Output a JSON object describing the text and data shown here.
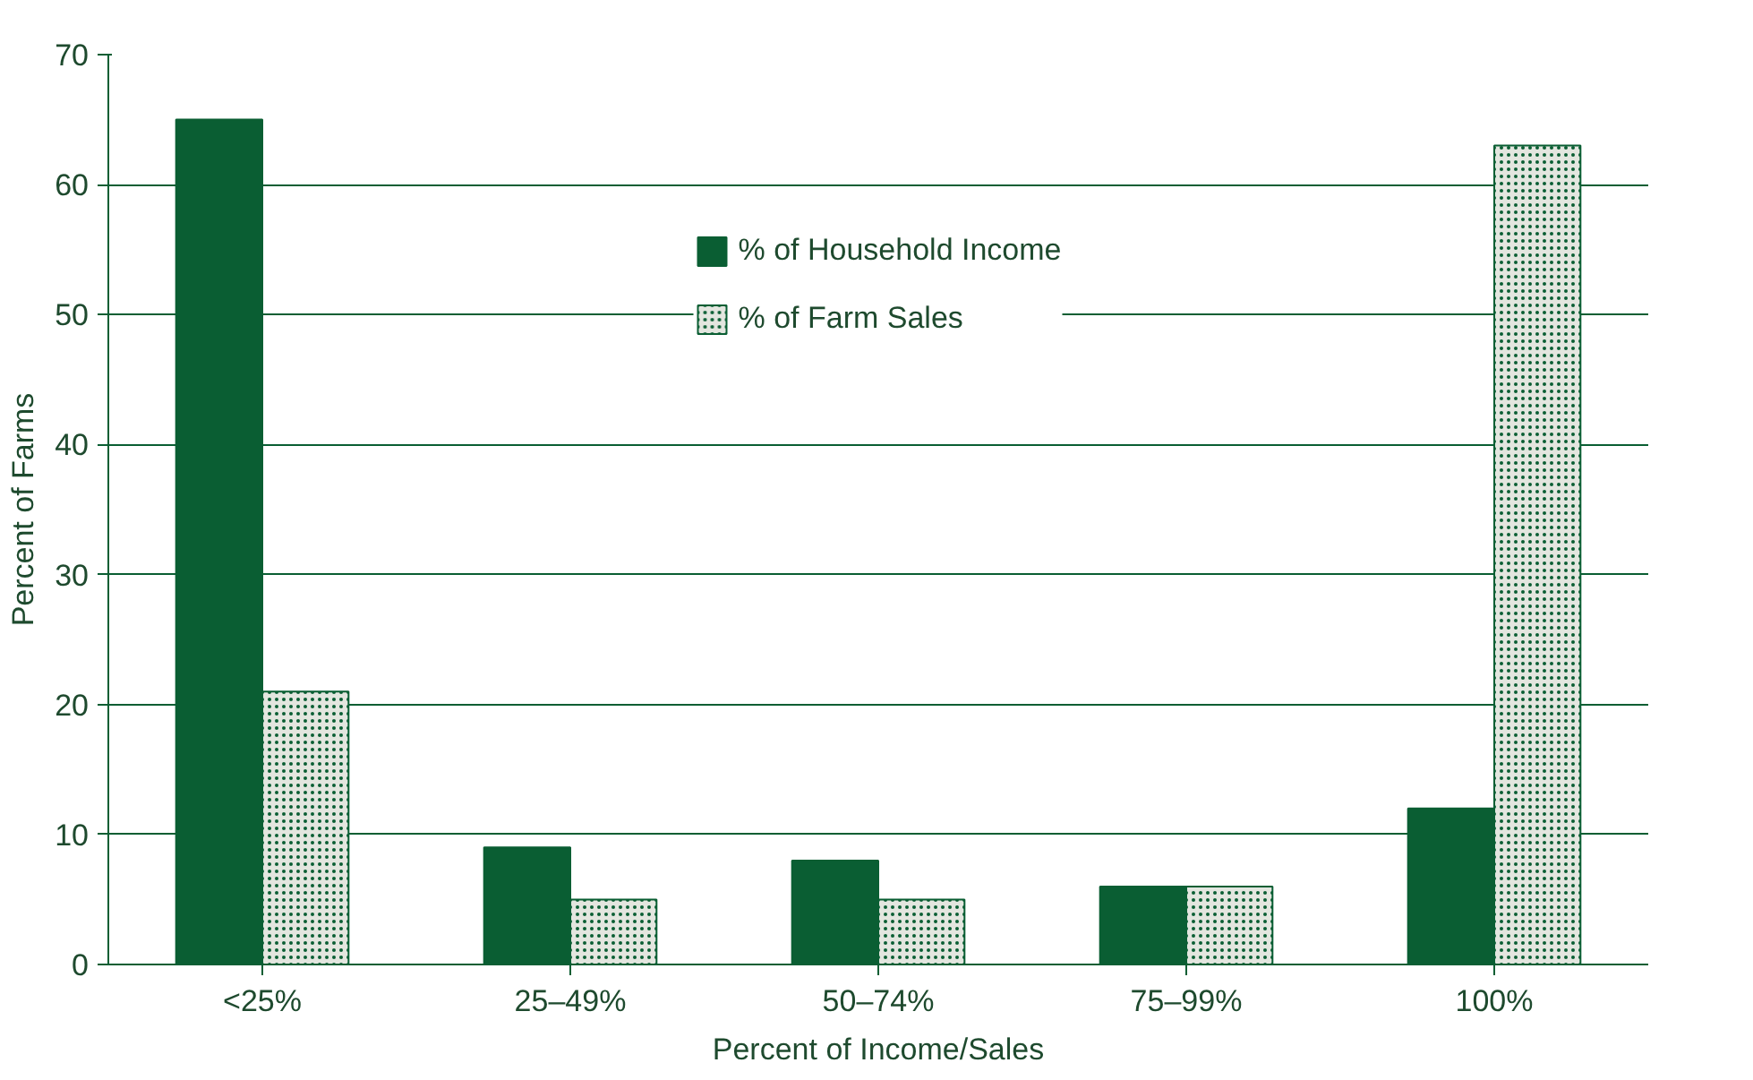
{
  "chart_data": {
    "type": "bar",
    "categories": [
      "<25%",
      "25–49%",
      "50–74%",
      "75–99%",
      "100%"
    ],
    "series": [
      {
        "name": "% of Household Income",
        "color": "#0a5e33",
        "values": [
          65,
          9,
          8,
          6,
          12
        ]
      },
      {
        "name": "% of Farm Sales",
        "color": "#e3e6df",
        "values": [
          21,
          5,
          5,
          6,
          63
        ]
      }
    ],
    "xlabel": "Percent of Income/Sales",
    "ylabel": "Percent of Farms",
    "ylim": [
      0,
      70
    ],
    "yticks": [
      0,
      10,
      20,
      30,
      40,
      50,
      60,
      70
    ],
    "grid": "y",
    "legend": "top"
  }
}
